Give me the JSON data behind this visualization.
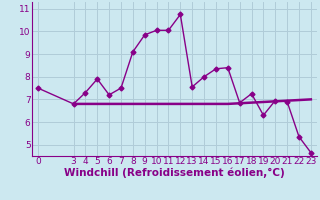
{
  "xlabel": "Windchill (Refroidissement éolien,°C)",
  "line1_x": [
    0,
    3,
    4,
    5,
    6,
    7,
    8,
    9,
    10,
    11,
    12,
    13,
    14,
    15,
    16,
    17,
    18,
    19,
    20,
    21,
    22,
    23
  ],
  "line1_y": [
    7.5,
    6.8,
    7.3,
    7.9,
    7.2,
    7.5,
    9.1,
    9.85,
    10.05,
    10.05,
    10.75,
    7.55,
    8.0,
    8.35,
    8.4,
    6.85,
    7.25,
    6.3,
    6.95,
    6.9,
    5.35,
    4.65
  ],
  "line2_x": [
    3,
    16,
    23
  ],
  "line2_y": [
    6.8,
    6.8,
    7.0
  ],
  "line_color": "#880088",
  "bg_color": "#cce8f0",
  "grid_color": "#b0ccd8",
  "ylim": [
    4.5,
    11.3
  ],
  "xlim": [
    -0.5,
    23.5
  ],
  "yticks": [
    5,
    6,
    7,
    8,
    9,
    10,
    11
  ],
  "xticks": [
    0,
    3,
    4,
    5,
    6,
    7,
    8,
    9,
    10,
    11,
    12,
    13,
    14,
    15,
    16,
    17,
    18,
    19,
    20,
    21,
    22,
    23
  ],
  "marker": "D",
  "markersize": 2.5,
  "linewidth": 1.0,
  "xlabel_fontsize": 7.5,
  "tick_fontsize": 6.5
}
